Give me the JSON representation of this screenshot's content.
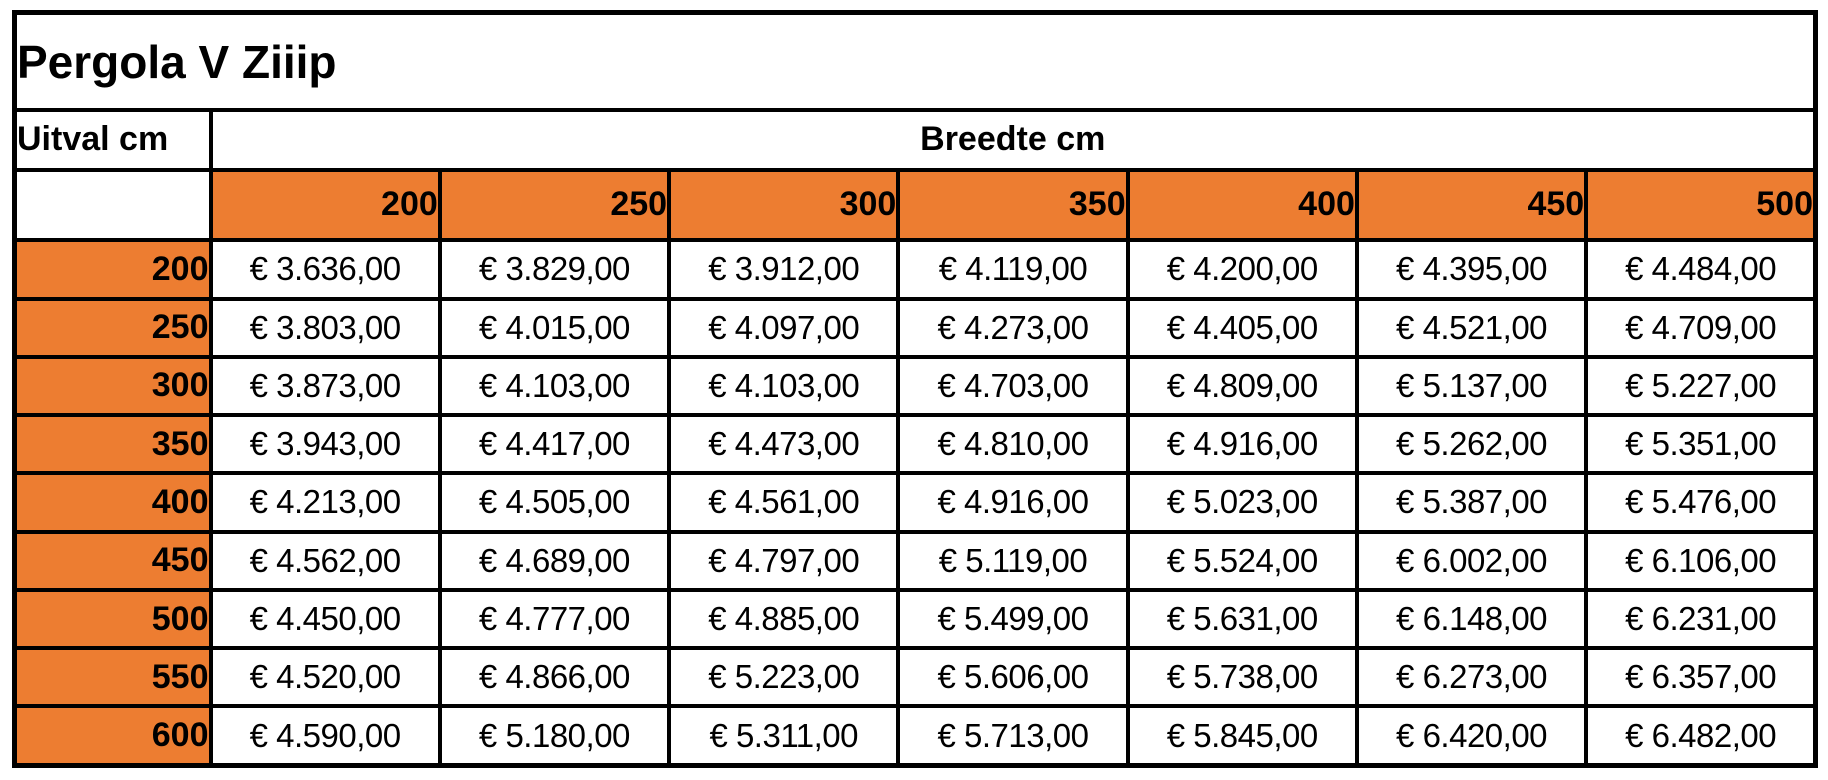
{
  "chart_data": {
    "type": "table",
    "title": "Pergola V Ziiip",
    "row_axis_label": "Uitval cm",
    "col_axis_label": "Breedte cm",
    "columns": [
      "200",
      "250",
      "300",
      "350",
      "400",
      "450",
      "500"
    ],
    "rows": [
      {
        "uitval": "200",
        "values": [
          "€ 3.636,00",
          "€ 3.829,00",
          "€ 3.912,00",
          "€ 4.119,00",
          "€ 4.200,00",
          "€ 4.395,00",
          "€ 4.484,00"
        ]
      },
      {
        "uitval": "250",
        "values": [
          "€ 3.803,00",
          "€ 4.015,00",
          "€ 4.097,00",
          "€ 4.273,00",
          "€ 4.405,00",
          "€ 4.521,00",
          "€ 4.709,00"
        ]
      },
      {
        "uitval": "300",
        "values": [
          "€ 3.873,00",
          "€ 4.103,00",
          "€ 4.103,00",
          "€ 4.703,00",
          "€ 4.809,00",
          "€ 5.137,00",
          "€ 5.227,00"
        ]
      },
      {
        "uitval": "350",
        "values": [
          "€ 3.943,00",
          "€ 4.417,00",
          "€ 4.473,00",
          "€ 4.810,00",
          "€ 4.916,00",
          "€ 5.262,00",
          "€ 5.351,00"
        ]
      },
      {
        "uitval": "400",
        "values": [
          "€ 4.213,00",
          "€ 4.505,00",
          "€ 4.561,00",
          "€ 4.916,00",
          "€ 5.023,00",
          "€ 5.387,00",
          "€ 5.476,00"
        ]
      },
      {
        "uitval": "450",
        "values": [
          "€ 4.562,00",
          "€ 4.689,00",
          "€ 4.797,00",
          "€ 5.119,00",
          "€ 5.524,00",
          "€ 6.002,00",
          "€ 6.106,00"
        ]
      },
      {
        "uitval": "500",
        "values": [
          "€ 4.450,00",
          "€ 4.777,00",
          "€ 4.885,00",
          "€ 5.499,00",
          "€ 5.631,00",
          "€ 6.148,00",
          "€ 6.231,00"
        ]
      },
      {
        "uitval": "550",
        "values": [
          "€ 4.520,00",
          "€ 4.866,00",
          "€ 5.223,00",
          "€ 5.606,00",
          "€ 5.738,00",
          "€ 6.273,00",
          "€ 6.357,00"
        ]
      },
      {
        "uitval": "600",
        "values": [
          "€ 4.590,00",
          "€ 5.180,00",
          "€ 5.311,00",
          "€ 5.713,00",
          "€ 5.845,00",
          "€ 6.420,00",
          "€ 6.482,00"
        ]
      }
    ],
    "currency": "EUR",
    "layout_hints": {
      "header_fill": "orange",
      "grid": "on",
      "numbers_locale": "nl-NL"
    }
  },
  "colors": {
    "accent_orange": "#ED7D31",
    "border_black": "#000000",
    "background_white": "#FFFFFF"
  }
}
